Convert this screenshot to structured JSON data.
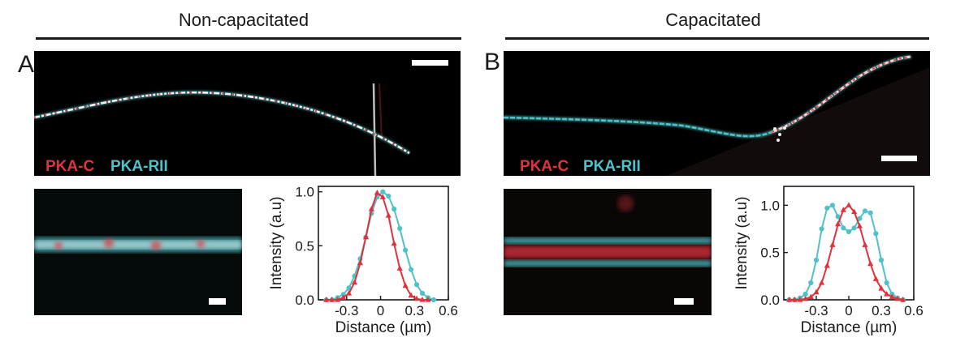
{
  "conditions": {
    "left": "Non-capacitated",
    "right": "Capacitated"
  },
  "panels": {
    "a": "A",
    "b": "B"
  },
  "legend": {
    "channel1": "PKA-C",
    "channel2": "PKA-RII"
  },
  "colors": {
    "pka_c": "#e0323c",
    "pka_rii": "#4fc1c8"
  },
  "chart_data": [
    {
      "type": "line",
      "xlabel": "Distance (µm)",
      "ylabel": "Intensity (a.u)",
      "xlim": [
        -0.55,
        0.6
      ],
      "ylim": [
        0,
        1.05
      ],
      "xticks": [
        -0.3,
        0,
        0.3,
        0.6
      ],
      "xtick_labels": [
        "-0.3",
        "0",
        "0.3",
        "0.6"
      ],
      "yticks": [
        0.0,
        0.5,
        1.0
      ],
      "ytick_labels": [
        "0.0",
        "0.5",
        "1.0"
      ],
      "series": [
        {
          "name": "PKA-RII",
          "marker": "circle",
          "color": "#4fc1c8",
          "x": [
            -0.48,
            -0.43,
            -0.38,
            -0.33,
            -0.28,
            -0.23,
            -0.18,
            -0.13,
            -0.08,
            -0.03,
            0.02,
            0.07,
            0.12,
            0.17,
            0.22,
            0.27,
            0.32,
            0.37,
            0.42,
            0.47
          ],
          "y": [
            0.0,
            0.0,
            0.02,
            0.05,
            0.11,
            0.22,
            0.38,
            0.58,
            0.8,
            0.95,
            1.0,
            0.96,
            0.84,
            0.66,
            0.46,
            0.28,
            0.14,
            0.06,
            0.02,
            0.0
          ]
        },
        {
          "name": "PKA-C",
          "marker": "triangle",
          "color": "#e0323c",
          "x": [
            -0.48,
            -0.43,
            -0.38,
            -0.33,
            -0.28,
            -0.23,
            -0.18,
            -0.13,
            -0.08,
            -0.03,
            0.02,
            0.07,
            0.12,
            0.17,
            0.22,
            0.27,
            0.32,
            0.37,
            0.42
          ],
          "y": [
            0.0,
            0.0,
            0.0,
            0.02,
            0.06,
            0.16,
            0.34,
            0.58,
            0.84,
            0.99,
            0.95,
            0.78,
            0.52,
            0.29,
            0.13,
            0.04,
            0.01,
            0.0,
            0.0
          ]
        }
      ]
    },
    {
      "type": "line",
      "xlabel": "Distance (µm)",
      "ylabel": "Intensity (a.u)",
      "xlim": [
        -0.6,
        0.6
      ],
      "ylim": [
        0,
        1.2
      ],
      "xticks": [
        -0.3,
        0,
        0.3,
        0.6
      ],
      "xtick_labels": [
        "-0.3",
        "0",
        "0.3",
        "0.6"
      ],
      "yticks": [
        0.0,
        0.5,
        1.0
      ],
      "ytick_labels": [
        "0.0",
        "0.5",
        "1.0"
      ],
      "series": [
        {
          "name": "PKA-RII",
          "marker": "circle",
          "color": "#4fc1c8",
          "x": [
            -0.55,
            -0.5,
            -0.45,
            -0.4,
            -0.35,
            -0.3,
            -0.25,
            -0.2,
            -0.15,
            -0.1,
            -0.05,
            0.0,
            0.05,
            0.1,
            0.15,
            0.2,
            0.25,
            0.3,
            0.35,
            0.4,
            0.45,
            0.5
          ],
          "y": [
            0.0,
            0.0,
            0.02,
            0.06,
            0.18,
            0.42,
            0.75,
            0.97,
            1.0,
            0.88,
            0.76,
            0.72,
            0.76,
            0.86,
            0.94,
            0.92,
            0.7,
            0.42,
            0.18,
            0.06,
            0.02,
            0.0
          ]
        },
        {
          "name": "PKA-C",
          "marker": "triangle",
          "color": "#e0323c",
          "x": [
            -0.55,
            -0.5,
            -0.45,
            -0.4,
            -0.35,
            -0.3,
            -0.25,
            -0.2,
            -0.15,
            -0.1,
            -0.05,
            0.0,
            0.05,
            0.1,
            0.15,
            0.2,
            0.25,
            0.3,
            0.35,
            0.4,
            0.45,
            0.5
          ],
          "y": [
            0.0,
            0.0,
            0.0,
            0.01,
            0.03,
            0.08,
            0.18,
            0.36,
            0.58,
            0.8,
            0.95,
            1.0,
            0.93,
            0.78,
            0.58,
            0.38,
            0.22,
            0.12,
            0.06,
            0.03,
            0.01,
            0.0
          ]
        }
      ]
    }
  ]
}
